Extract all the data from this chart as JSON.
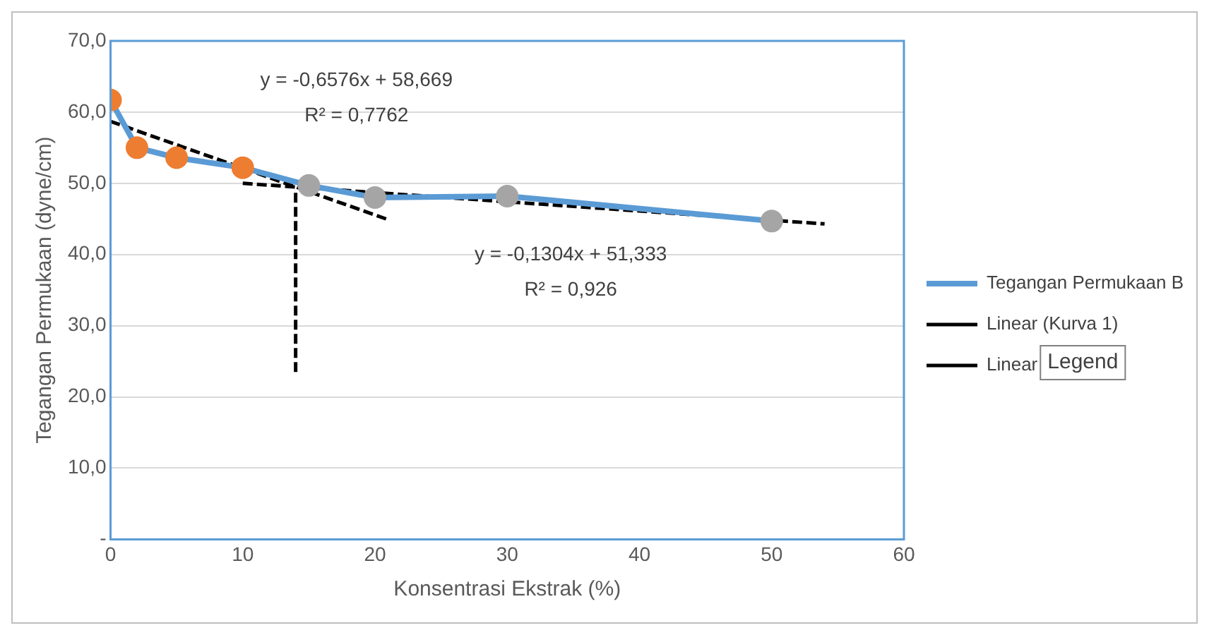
{
  "chart_data": {
    "type": "line",
    "xlabel": "Konsentrasi Ekstrak (%)",
    "ylabel": "Tegangan Permukaan (dyne/cm)",
    "xlim": [
      0,
      60
    ],
    "xticks": [
      0,
      10,
      20,
      30,
      40,
      50,
      60
    ],
    "ylim": [
      0,
      70
    ],
    "yticks": [
      {
        "value": 0,
        "label": "-"
      },
      {
        "value": 10,
        "label": "10,0"
      },
      {
        "value": 20,
        "label": "20,0"
      },
      {
        "value": 30,
        "label": "30,0"
      },
      {
        "value": 40,
        "label": "40,0"
      },
      {
        "value": 50,
        "label": "50,0"
      },
      {
        "value": 60,
        "label": "60,0"
      },
      {
        "value": 70,
        "label": "70,0"
      }
    ],
    "grid": "y",
    "legend": "right",
    "series": [
      {
        "name": "Tegangan Permukaan B",
        "color": "#5b9bd5",
        "marker": "circle",
        "line_style": "solid",
        "x": [
          0,
          2,
          5,
          10,
          15,
          20,
          30,
          50
        ],
        "values": [
          61.7,
          55.0,
          53.6,
          52.2,
          49.7,
          48.0,
          48.2,
          44.7
        ],
        "colors": [
          "#ed7d31",
          "#ed7d31",
          "#ed7d31",
          "#ed7d31",
          "#a5a5a5",
          "#a5a5a5",
          "#a5a5a5",
          "#a5a5a5"
        ]
      },
      {
        "name": "Linear (Kurva 1)",
        "color": "#000000",
        "marker": "none",
        "line_style": "dashed",
        "x": [
          0,
          21
        ],
        "values": [
          58.7,
          44.9
        ]
      },
      {
        "name": "Linear",
        "color": "#000000",
        "marker": "none",
        "line_style": "dashed",
        "x": [
          10,
          54
        ],
        "values": [
          50.0,
          44.3
        ]
      },
      {
        "color": "#000000",
        "marker": "none",
        "line_style": "dashed",
        "x": [
          14,
          14
        ],
        "values": [
          23.5,
          49.2
        ]
      }
    ],
    "annotations": [
      "y = -0,6576x + 58,669",
      "R² = 0,7762",
      "y = -0,1304x + 51,333",
      "R² = 0,926",
      "Legend"
    ]
  }
}
